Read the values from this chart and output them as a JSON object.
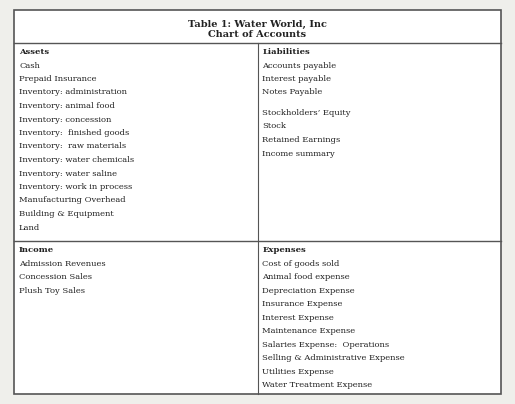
{
  "title_line1": "Table 1: Water World, Inc",
  "title_line2": "Chart of Accounts",
  "col1_row1": [
    "Assets",
    "Cash",
    "Prepaid Insurance",
    "Inventory: administration",
    "Inventory: animal food",
    "Inventory: concession",
    "Inventory:  finished goods",
    "Inventory:  raw materials",
    "Inventory: water chemicals",
    "Inventory: water saline",
    "Inventory: work in process",
    "Manufacturing Overhead",
    "Building & Equipment",
    "Land"
  ],
  "col2_row1": [
    "Liabilities",
    "Accounts payable",
    "Interest payable",
    "Notes Payable",
    "",
    "Stockholders’ Equity",
    "Stock",
    "Retained Earnings",
    "Income summary"
  ],
  "col1_row2": [
    "Income",
    "Admission Revenues",
    "Concession Sales",
    "Plush Toy Sales"
  ],
  "col2_row2": [
    "Expenses",
    "Cost of goods sold",
    "Animal food expense",
    "Depreciation Expense",
    "Insurance Expense",
    "Interest Expense",
    "Maintenance Expense",
    "Salaries Expense:  Operations",
    "Selling & Administrative Expense",
    "Utilities Expense",
    "Water Treatment Expense"
  ],
  "background_color": "#efefeb",
  "table_bg": "#ffffff",
  "border_color": "#555555",
  "text_color": "#222222",
  "font_size": 6.0,
  "title_font_size": 7.0
}
